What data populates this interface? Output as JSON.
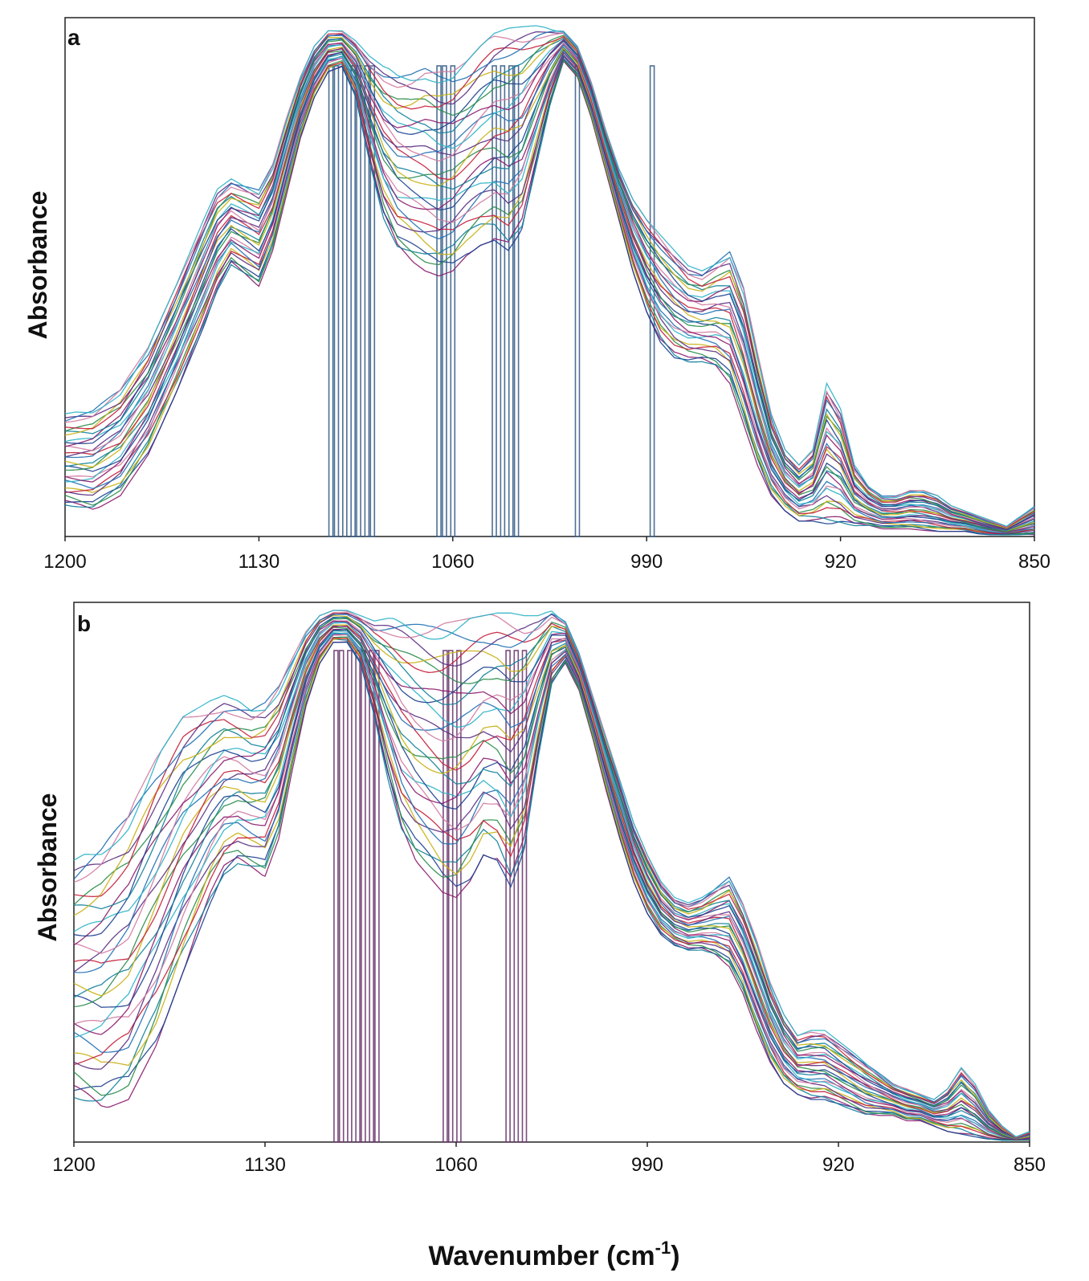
{
  "chart_data": [
    {
      "type": "line",
      "panel_label": "a",
      "ylabel": "Absorbance",
      "xlabel": "",
      "xlim": [
        1200,
        850
      ],
      "ylim": [
        0,
        1
      ],
      "x_reversed": true,
      "xticks": [
        1200,
        1130,
        1060,
        990,
        920,
        850
      ],
      "xtick_labels": [
        "1200",
        "1130",
        "1060",
        "990",
        "920",
        "850"
      ],
      "highlight_wavenumbers": [
        1104,
        1102,
        1099,
        1096,
        1094,
        1091,
        1089,
        1065,
        1063,
        1060,
        1045,
        1042,
        1039,
        1037,
        1015,
        988
      ],
      "highlight_color": "#3a5f8a",
      "colors": [
        "#8b1a6b",
        "#1b3f8f",
        "#0e7f9a",
        "#2a8c4a",
        "#c8b012",
        "#c41e3a",
        "#5a2d82",
        "#1f6fb2",
        "#d07aa0",
        "#2bb3c7"
      ],
      "envelope": {
        "x": [
          1200,
          1190,
          1180,
          1170,
          1160,
          1150,
          1145,
          1140,
          1135,
          1130,
          1125,
          1120,
          1115,
          1110,
          1105,
          1100,
          1095,
          1090,
          1085,
          1080,
          1075,
          1070,
          1065,
          1060,
          1055,
          1050,
          1045,
          1040,
          1035,
          1030,
          1025,
          1020,
          1015,
          1010,
          1005,
          1000,
          995,
          990,
          985,
          980,
          975,
          970,
          965,
          960,
          955,
          950,
          945,
          940,
          935,
          930,
          925,
          920,
          915,
          910,
          905,
          900,
          895,
          890,
          885,
          880,
          875,
          870,
          865,
          860,
          855,
          850
        ],
        "low": [
          0.06,
          0.05,
          0.08,
          0.16,
          0.28,
          0.41,
          0.48,
          0.53,
          0.51,
          0.49,
          0.56,
          0.67,
          0.78,
          0.86,
          0.91,
          0.92,
          0.86,
          0.73,
          0.62,
          0.56,
          0.54,
          0.52,
          0.51,
          0.52,
          0.55,
          0.57,
          0.58,
          0.56,
          0.6,
          0.72,
          0.84,
          0.93,
          0.9,
          0.82,
          0.72,
          0.62,
          0.52,
          0.44,
          0.38,
          0.35,
          0.34,
          0.34,
          0.33,
          0.3,
          0.22,
          0.14,
          0.08,
          0.05,
          0.03,
          0.03,
          0.025,
          0.025,
          0.02,
          0.02,
          0.015,
          0.015,
          0.015,
          0.012,
          0.01,
          0.01,
          0.01,
          0.005,
          0.003,
          0.003,
          0.003,
          0.003
        ],
        "high": [
          0.24,
          0.25,
          0.29,
          0.37,
          0.49,
          0.62,
          0.68,
          0.7,
          0.69,
          0.68,
          0.73,
          0.82,
          0.9,
          0.96,
          0.99,
          0.99,
          0.97,
          0.94,
          0.92,
          0.91,
          0.91,
          0.92,
          0.91,
          0.91,
          0.93,
          0.96,
          0.985,
          0.995,
          0.998,
          1.0,
          0.995,
          0.99,
          0.96,
          0.89,
          0.8,
          0.72,
          0.66,
          0.62,
          0.59,
          0.56,
          0.53,
          0.52,
          0.54,
          0.56,
          0.49,
          0.36,
          0.24,
          0.17,
          0.14,
          0.17,
          0.3,
          0.25,
          0.14,
          0.1,
          0.08,
          0.08,
          0.09,
          0.09,
          0.08,
          0.06,
          0.05,
          0.04,
          0.03,
          0.02,
          0.04,
          0.06
        ]
      },
      "series_count": 30
    },
    {
      "type": "line",
      "panel_label": "b",
      "ylabel": "Absorbance",
      "xlabel": "Wavenumber (cm-1)",
      "xlim": [
        1200,
        850
      ],
      "ylim": [
        0,
        1
      ],
      "x_reversed": true,
      "xticks": [
        1200,
        1130,
        1060,
        990,
        920,
        850
      ],
      "xtick_labels": [
        "1200",
        "1130",
        "1060",
        "990",
        "920",
        "850"
      ],
      "highlight_wavenumbers": [
        1104,
        1102,
        1099,
        1096,
        1094,
        1091,
        1089,
        1064,
        1062,
        1059,
        1041,
        1038,
        1035
      ],
      "highlight_color": "#6b3a6f",
      "colors": [
        "#8b1a6b",
        "#1b3f8f",
        "#0e7f9a",
        "#2a8c4a",
        "#c8b012",
        "#c41e3a",
        "#5a2d82",
        "#1f6fb2",
        "#d07aa0",
        "#2bb3c7"
      ],
      "envelope": {
        "x": [
          1200,
          1190,
          1180,
          1170,
          1160,
          1150,
          1145,
          1140,
          1135,
          1130,
          1125,
          1120,
          1115,
          1110,
          1105,
          1100,
          1095,
          1090,
          1085,
          1080,
          1075,
          1070,
          1065,
          1060,
          1055,
          1050,
          1045,
          1040,
          1035,
          1030,
          1025,
          1020,
          1015,
          1010,
          1005,
          1000,
          995,
          990,
          985,
          980,
          975,
          970,
          965,
          960,
          955,
          950,
          945,
          940,
          935,
          930,
          925,
          920,
          915,
          910,
          905,
          900,
          895,
          890,
          885,
          880,
          875,
          870,
          865,
          860,
          855,
          850
        ],
        "low": [
          0.08,
          0.06,
          0.08,
          0.18,
          0.32,
          0.45,
          0.5,
          0.52,
          0.51,
          0.5,
          0.57,
          0.7,
          0.82,
          0.9,
          0.94,
          0.94,
          0.9,
          0.8,
          0.68,
          0.58,
          0.53,
          0.5,
          0.47,
          0.46,
          0.49,
          0.54,
          0.53,
          0.48,
          0.55,
          0.72,
          0.86,
          0.9,
          0.85,
          0.76,
          0.66,
          0.57,
          0.49,
          0.43,
          0.39,
          0.37,
          0.36,
          0.36,
          0.35,
          0.33,
          0.28,
          0.21,
          0.15,
          0.11,
          0.09,
          0.08,
          0.08,
          0.07,
          0.06,
          0.05,
          0.05,
          0.05,
          0.04,
          0.04,
          0.03,
          0.02,
          0.015,
          0.01,
          0.005,
          0.003,
          0.003,
          0.003
        ],
        "high": [
          0.53,
          0.56,
          0.62,
          0.72,
          0.8,
          0.83,
          0.84,
          0.83,
          0.82,
          0.83,
          0.86,
          0.91,
          0.96,
          0.99,
          1.0,
          1.0,
          0.99,
          0.98,
          0.985,
          0.985,
          0.98,
          0.975,
          0.975,
          0.98,
          0.985,
          0.99,
          0.995,
          0.995,
          0.99,
          0.99,
          1.0,
          0.98,
          0.92,
          0.84,
          0.76,
          0.68,
          0.6,
          0.54,
          0.49,
          0.46,
          0.45,
          0.46,
          0.48,
          0.5,
          0.45,
          0.38,
          0.3,
          0.24,
          0.2,
          0.21,
          0.21,
          0.19,
          0.17,
          0.15,
          0.13,
          0.11,
          0.1,
          0.09,
          0.08,
          0.1,
          0.14,
          0.11,
          0.06,
          0.03,
          0.01,
          0.02
        ]
      },
      "series_count": 30
    }
  ],
  "labels": {
    "panel_a": "a",
    "panel_b": "b",
    "ylabel_a": "Absorbance",
    "ylabel_b": "Absorbance",
    "xlabel_main": "Wavenumber (cm",
    "xlabel_sup": "-1",
    "xlabel_close": ")"
  }
}
